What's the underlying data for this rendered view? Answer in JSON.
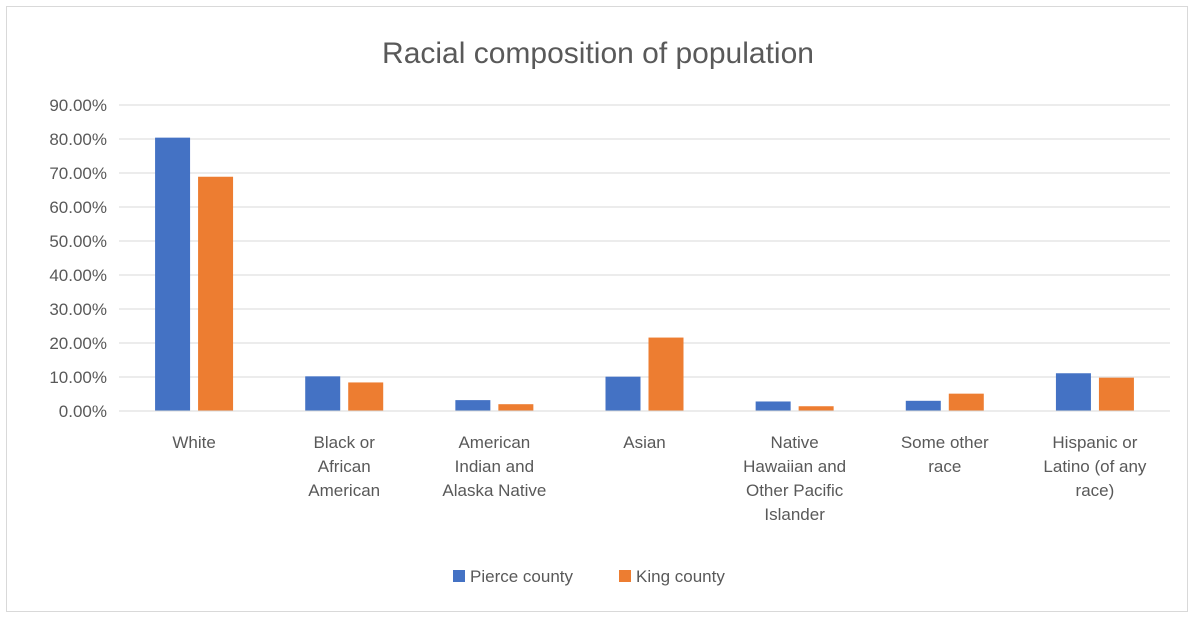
{
  "chart_data": {
    "type": "bar",
    "title": "Racial composition of population",
    "xlabel": "",
    "ylabel": "",
    "categories": [
      [
        "White"
      ],
      [
        "Black or",
        "African",
        "American"
      ],
      [
        "American",
        "Indian and",
        "Alaska Native"
      ],
      [
        "Asian"
      ],
      [
        "Native",
        "Hawaiian and",
        "Other Pacific",
        "Islander"
      ],
      [
        "Some other",
        "race"
      ],
      [
        "Hispanic or",
        "Latino (of any",
        "race)"
      ]
    ],
    "series": [
      {
        "name": "Pierce county",
        "color": "#4472c4",
        "values": [
          80.4,
          10.2,
          3.2,
          10.1,
          2.8,
          3.0,
          11.1
        ]
      },
      {
        "name": "King county",
        "color": "#ed7d31",
        "values": [
          68.9,
          8.4,
          2.0,
          21.6,
          1.4,
          5.1,
          9.8
        ]
      }
    ],
    "ylim": [
      0,
      90
    ],
    "yticks": [
      0,
      10,
      20,
      30,
      40,
      50,
      60,
      70,
      80,
      90
    ],
    "ytick_labels": [
      "0.00%",
      "10.00%",
      "20.00%",
      "30.00%",
      "40.00%",
      "50.00%",
      "60.00%",
      "70.00%",
      "80.00%",
      "90.00%"
    ],
    "grid": true,
    "legend_position": "bottom"
  }
}
